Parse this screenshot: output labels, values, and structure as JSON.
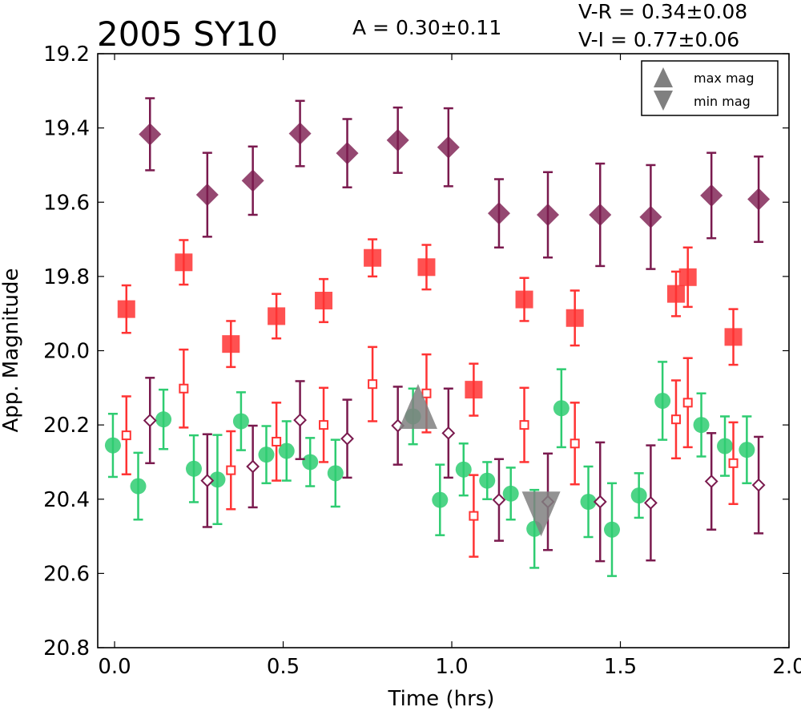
{
  "chart_data": {
    "type": "scatter",
    "title": "2005 SY10",
    "annotations": {
      "amplitude": "A  = 0.30±0.11",
      "v_r": "V-R = 0.34±0.08",
      "v_i": "V-I  = 0.77±0.06"
    },
    "xlabel": "Time (hrs)",
    "ylabel": "App. Magnitude",
    "xlim": [
      -0.05,
      2.0
    ],
    "ylim": [
      20.8,
      19.2
    ],
    "y_inverted": true,
    "xticks": [
      "0.0",
      "0.5",
      "1.0",
      "1.5",
      "2.0"
    ],
    "yticks": [
      "19.2",
      "19.4",
      "19.6",
      "19.8",
      "20.0",
      "20.2",
      "20.4",
      "20.6",
      "20.8"
    ],
    "grid": false,
    "legend": {
      "placement": "top-right",
      "entries": [
        {
          "label": "max mag",
          "marker": "triangle-up",
          "color": "#808080"
        },
        {
          "label": "min mag",
          "marker": "triangle-down",
          "color": "#808080"
        }
      ]
    },
    "series": [
      {
        "id": "dark-diamond-filled",
        "marker": "diamond",
        "filled": true,
        "color": "#7a1a4e",
        "points": [
          {
            "x": 0.105,
            "y": 19.417,
            "err": 0.097
          },
          {
            "x": 0.275,
            "y": 19.58,
            "err": 0.113
          },
          {
            "x": 0.41,
            "y": 19.542,
            "err": 0.092
          },
          {
            "x": 0.55,
            "y": 19.415,
            "err": 0.088
          },
          {
            "x": 0.69,
            "y": 19.468,
            "err": 0.092
          },
          {
            "x": 0.84,
            "y": 19.433,
            "err": 0.088
          },
          {
            "x": 0.99,
            "y": 19.452,
            "err": 0.105
          },
          {
            "x": 1.14,
            "y": 19.63,
            "err": 0.092
          },
          {
            "x": 1.285,
            "y": 19.634,
            "err": 0.115
          },
          {
            "x": 1.44,
            "y": 19.634,
            "err": 0.138
          },
          {
            "x": 1.59,
            "y": 19.64,
            "err": 0.14
          },
          {
            "x": 1.77,
            "y": 19.582,
            "err": 0.115
          },
          {
            "x": 1.91,
            "y": 19.592,
            "err": 0.115
          }
        ]
      },
      {
        "id": "red-square-filled",
        "marker": "square",
        "filled": true,
        "color": "#ff3333",
        "points": [
          {
            "x": 0.035,
            "y": 19.888,
            "err": 0.064
          },
          {
            "x": 0.205,
            "y": 19.762,
            "err": 0.06
          },
          {
            "x": 0.345,
            "y": 19.982,
            "err": 0.062
          },
          {
            "x": 0.48,
            "y": 19.907,
            "err": 0.06
          },
          {
            "x": 0.62,
            "y": 19.865,
            "err": 0.058
          },
          {
            "x": 0.765,
            "y": 19.75,
            "err": 0.05
          },
          {
            "x": 0.925,
            "y": 19.775,
            "err": 0.06
          },
          {
            "x": 1.065,
            "y": 20.105,
            "err": 0.07
          },
          {
            "x": 1.215,
            "y": 19.862,
            "err": 0.058
          },
          {
            "x": 1.365,
            "y": 19.912,
            "err": 0.074
          },
          {
            "x": 1.665,
            "y": 19.847,
            "err": 0.06
          },
          {
            "x": 1.7,
            "y": 19.802,
            "err": 0.08
          },
          {
            "x": 1.835,
            "y": 19.963,
            "err": 0.075
          }
        ]
      },
      {
        "id": "green-circle",
        "marker": "circle",
        "filled": true,
        "color": "#2ecc71",
        "points": [
          {
            "x": -0.005,
            "y": 20.255,
            "err": 0.085
          },
          {
            "x": 0.07,
            "y": 20.365,
            "err": 0.09
          },
          {
            "x": 0.145,
            "y": 20.185,
            "err": 0.08
          },
          {
            "x": 0.235,
            "y": 20.318,
            "err": 0.09
          },
          {
            "x": 0.305,
            "y": 20.347,
            "err": 0.12
          },
          {
            "x": 0.375,
            "y": 20.19,
            "err": 0.078
          },
          {
            "x": 0.45,
            "y": 20.28,
            "err": 0.077
          },
          {
            "x": 0.51,
            "y": 20.27,
            "err": 0.08
          },
          {
            "x": 0.58,
            "y": 20.3,
            "err": 0.065
          },
          {
            "x": 0.655,
            "y": 20.33,
            "err": 0.09
          },
          {
            "x": 0.885,
            "y": 20.177,
            "err": 0.075
          },
          {
            "x": 0.965,
            "y": 20.402,
            "err": 0.095
          },
          {
            "x": 1.035,
            "y": 20.32,
            "err": 0.07
          },
          {
            "x": 1.105,
            "y": 20.35,
            "err": 0.05
          },
          {
            "x": 1.175,
            "y": 20.385,
            "err": 0.07
          },
          {
            "x": 1.245,
            "y": 20.48,
            "err": 0.105
          },
          {
            "x": 1.325,
            "y": 20.155,
            "err": 0.105
          },
          {
            "x": 1.405,
            "y": 20.407,
            "err": 0.095
          },
          {
            "x": 1.475,
            "y": 20.482,
            "err": 0.125
          },
          {
            "x": 1.555,
            "y": 20.39,
            "err": 0.06
          },
          {
            "x": 1.625,
            "y": 20.135,
            "err": 0.105
          },
          {
            "x": 1.74,
            "y": 20.2,
            "err": 0.085
          },
          {
            "x": 1.81,
            "y": 20.257,
            "err": 0.08
          },
          {
            "x": 1.875,
            "y": 20.267,
            "err": 0.09
          }
        ]
      },
      {
        "id": "red-square-open",
        "marker": "square",
        "filled": false,
        "color": "#ff3333",
        "points": [
          {
            "x": 0.035,
            "y": 20.228,
            "err": 0.105
          },
          {
            "x": 0.205,
            "y": 20.102,
            "err": 0.105
          },
          {
            "x": 0.345,
            "y": 20.322,
            "err": 0.105
          },
          {
            "x": 0.48,
            "y": 20.245,
            "err": 0.105
          },
          {
            "x": 0.62,
            "y": 20.2,
            "err": 0.1
          },
          {
            "x": 0.765,
            "y": 20.09,
            "err": 0.1
          },
          {
            "x": 0.925,
            "y": 20.115,
            "err": 0.105
          },
          {
            "x": 1.065,
            "y": 20.445,
            "err": 0.11
          },
          {
            "x": 1.215,
            "y": 20.2,
            "err": 0.1
          },
          {
            "x": 1.365,
            "y": 20.25,
            "err": 0.11
          },
          {
            "x": 1.665,
            "y": 20.185,
            "err": 0.105
          },
          {
            "x": 1.7,
            "y": 20.14,
            "err": 0.12
          },
          {
            "x": 1.835,
            "y": 20.303,
            "err": 0.11
          }
        ]
      },
      {
        "id": "dark-diamond-open",
        "marker": "diamond",
        "filled": false,
        "color": "#7a1a4e",
        "points": [
          {
            "x": 0.105,
            "y": 20.188,
            "err": 0.115
          },
          {
            "x": 0.275,
            "y": 20.35,
            "err": 0.125
          },
          {
            "x": 0.41,
            "y": 20.312,
            "err": 0.11
          },
          {
            "x": 0.55,
            "y": 20.187,
            "err": 0.105
          },
          {
            "x": 0.69,
            "y": 20.237,
            "err": 0.105
          },
          {
            "x": 0.84,
            "y": 20.202,
            "err": 0.105
          },
          {
            "x": 0.99,
            "y": 20.222,
            "err": 0.12
          },
          {
            "x": 1.14,
            "y": 20.402,
            "err": 0.11
          },
          {
            "x": 1.285,
            "y": 20.407,
            "err": 0.13
          },
          {
            "x": 1.44,
            "y": 20.407,
            "err": 0.16
          },
          {
            "x": 1.59,
            "y": 20.41,
            "err": 0.155
          },
          {
            "x": 1.77,
            "y": 20.352,
            "err": 0.13
          },
          {
            "x": 1.91,
            "y": 20.362,
            "err": 0.13
          }
        ]
      }
    ],
    "markers": [
      {
        "label": "max mag",
        "type": "triangle-up",
        "x": 0.9,
        "y": 20.15,
        "color": "#808080"
      },
      {
        "label": "min mag",
        "type": "triangle-down",
        "x": 1.265,
        "y": 20.44,
        "color": "#808080"
      }
    ]
  }
}
